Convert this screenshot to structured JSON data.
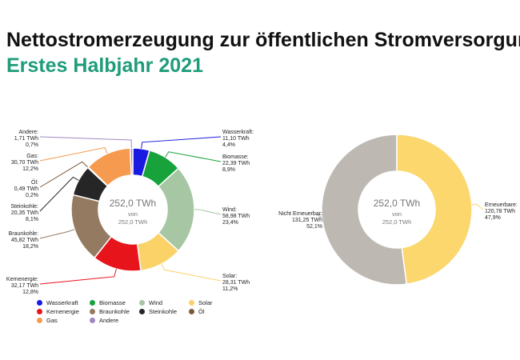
{
  "header": {
    "title": "Nettostromerzeugung zur öffentlichen Stromversorgung",
    "subtitle": "Erstes Halbjahr 2021"
  },
  "colors": {
    "Wasserkraft": "#1a1ae0",
    "Biomasse": "#17a23c",
    "Wind": "#a7c6a3",
    "Solar": "#fbd268",
    "Kernenergie": "#e8141c",
    "Braunkohle": "#957a62",
    "Steinkohle": "#262626",
    "Öl": "#7c5a3e",
    "Gas": "#f59a4e",
    "Andere": "#9f88c0",
    "Erneuerbare": "#fbd76e",
    "Nicht Erneuerbar": "#beb8b2"
  },
  "chart_data": [
    {
      "type": "pie",
      "title": "",
      "center": {
        "value": "252,0 TWh",
        "of": "von",
        "total": "252,0 TWh"
      },
      "slices": [
        {
          "name": "Wasserkraft",
          "label": "Wasserkraft:",
          "value": 11.1,
          "value_text": "11,10 TWh",
          "percent": "4,4%"
        },
        {
          "name": "Biomasse",
          "label": "Biomasse:",
          "value": 22.39,
          "value_text": "22,39 TWh",
          "percent": "8,9%"
        },
        {
          "name": "Wind",
          "label": "Wind:",
          "value": 58.98,
          "value_text": "58,98 TWh",
          "percent": "23,4%"
        },
        {
          "name": "Solar",
          "label": "Solar:",
          "value": 28.31,
          "value_text": "28,31 TWh",
          "percent": "11,2%"
        },
        {
          "name": "Kernenergie",
          "label": "Kernenergie:",
          "value": 32.17,
          "value_text": "32,17 TWh",
          "percent": "12,8%"
        },
        {
          "name": "Braunkohle",
          "label": "Braunkohle:",
          "value": 45.82,
          "value_text": "45,82 TWh",
          "percent": "18,2%"
        },
        {
          "name": "Steinkohle",
          "label": "Steinkohle:",
          "value": 20.35,
          "value_text": "20,35 TWh",
          "percent": "8,1%"
        },
        {
          "name": "Öl",
          "label": "Öl:",
          "value": 0.49,
          "value_text": "0,49 TWh",
          "percent": "0,2%"
        },
        {
          "name": "Gas",
          "label": "Gas:",
          "value": 30.7,
          "value_text": "30,70 TWh",
          "percent": "12,2%"
        },
        {
          "name": "Andere",
          "label": "Andere:",
          "value": 1.71,
          "value_text": "1,71 TWh",
          "percent": "0,7%"
        }
      ],
      "legend": {
        "placement": "bottom",
        "items": [
          "Wasserkraft",
          "Biomasse",
          "Wind",
          "Solar",
          "Kernenergie",
          "Braunkohle",
          "Steinkohle",
          "Öl",
          "Gas",
          "Andere"
        ]
      }
    },
    {
      "type": "pie",
      "title": "",
      "center": {
        "value": "252,0 TWh",
        "of": "von",
        "total": "252,0 TWh"
      },
      "slices": [
        {
          "name": "Erneuerbare",
          "label": "Erneuerbare:",
          "value": 120.78,
          "value_text": "120,78 TWh",
          "percent": "47,9%"
        },
        {
          "name": "Nicht Erneuerbar",
          "label": "Nicht Erneuerbar:",
          "value": 131.25,
          "value_text": "131,25 TWh",
          "percent": "52,1%"
        }
      ]
    }
  ]
}
